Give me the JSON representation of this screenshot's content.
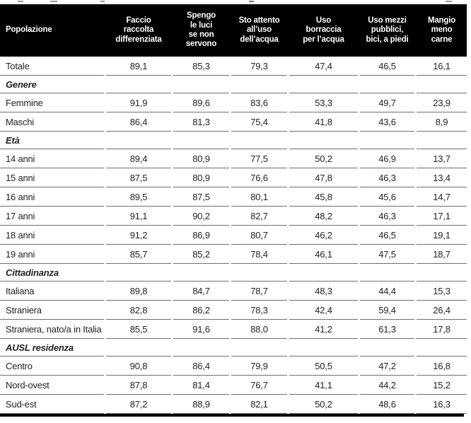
{
  "colors": {
    "header_bg": "#000000",
    "header_text": "#ffffff",
    "body_text": "#22222a",
    "row_line": "#6f6f6f",
    "bottom_rule": "#000000"
  },
  "table": {
    "columns": [
      "Popolazione",
      "Faccio\nraccolta\ndifferenziata",
      "Spengo\nle luci\nse non\nservono",
      "Sto attento\nall’uso\ndell’acqua",
      "Uso\nborraccia\nper l’acqua",
      "Uso mezzi\npubblici,\nbici, a piedi",
      "Mangio\nmeno\ncarne"
    ],
    "rows": [
      {
        "type": "data",
        "label": "Totale",
        "values": [
          "89,1",
          "85,3",
          "79,3",
          "47,4",
          "46,5",
          "16,1"
        ]
      },
      {
        "type": "section",
        "label": "Genere"
      },
      {
        "type": "data",
        "label": "Femmine",
        "values": [
          "91,9",
          "89,6",
          "83,6",
          "53,3",
          "49,7",
          "23,9"
        ]
      },
      {
        "type": "data",
        "label": "Maschi",
        "values": [
          "86,4",
          "81,3",
          "75,4",
          "41,8",
          "43,6",
          "8,9"
        ]
      },
      {
        "type": "section",
        "label": "Età"
      },
      {
        "type": "data",
        "label": "14 anni",
        "values": [
          "89,4",
          "80,9",
          "77,5",
          "50,2",
          "46,9",
          "13,7"
        ]
      },
      {
        "type": "data",
        "label": "15 anni",
        "values": [
          "87,5",
          "80,9",
          "76,6",
          "47,8",
          "46,3",
          "13,4"
        ]
      },
      {
        "type": "data",
        "label": "16 anni",
        "values": [
          "89,5",
          "87,5",
          "80,1",
          "45,8",
          "45,6",
          "14,7"
        ]
      },
      {
        "type": "data",
        "label": "17 anni",
        "values": [
          "91,1",
          "90,2",
          "82,7",
          "48,2",
          "46,3",
          "17,1"
        ]
      },
      {
        "type": "data",
        "label": "18 anni",
        "values": [
          "91,2",
          "86,9",
          "80,7",
          "46,2",
          "46,5",
          "19,1"
        ]
      },
      {
        "type": "data",
        "label": "19 anni",
        "values": [
          "85,7",
          "85,2",
          "78,4",
          "46,1",
          "47,5",
          "18,7"
        ]
      },
      {
        "type": "section",
        "label": "Cittadinanza"
      },
      {
        "type": "data",
        "label": "Italiana",
        "values": [
          "89,8",
          "84,7",
          "78,7",
          "48,3",
          "44,4",
          "15,3"
        ]
      },
      {
        "type": "data",
        "label": "Straniera",
        "values": [
          "82,8",
          "86,2",
          "78,3",
          "42,4",
          "59,4",
          "26,4"
        ]
      },
      {
        "type": "data",
        "label": "Straniera, nato/a in Italia",
        "values": [
          "85,5",
          "91,6",
          "88,0",
          "41,2",
          "61,3",
          "17,8"
        ]
      },
      {
        "type": "section",
        "label": "AUSL residenza"
      },
      {
        "type": "data",
        "label": "Centro",
        "values": [
          "90,8",
          "86,4",
          "79,9",
          "50,5",
          "47,2",
          "16,8"
        ]
      },
      {
        "type": "data",
        "label": "Nord-ovest",
        "values": [
          "87,8",
          "81,4",
          "76,7",
          "41,1",
          "44,2",
          "15,2"
        ]
      },
      {
        "type": "data",
        "label": "Sud-est",
        "values": [
          "87,2",
          "88,9",
          "82,1",
          "50,2",
          "48,6",
          "16,3"
        ]
      }
    ]
  }
}
